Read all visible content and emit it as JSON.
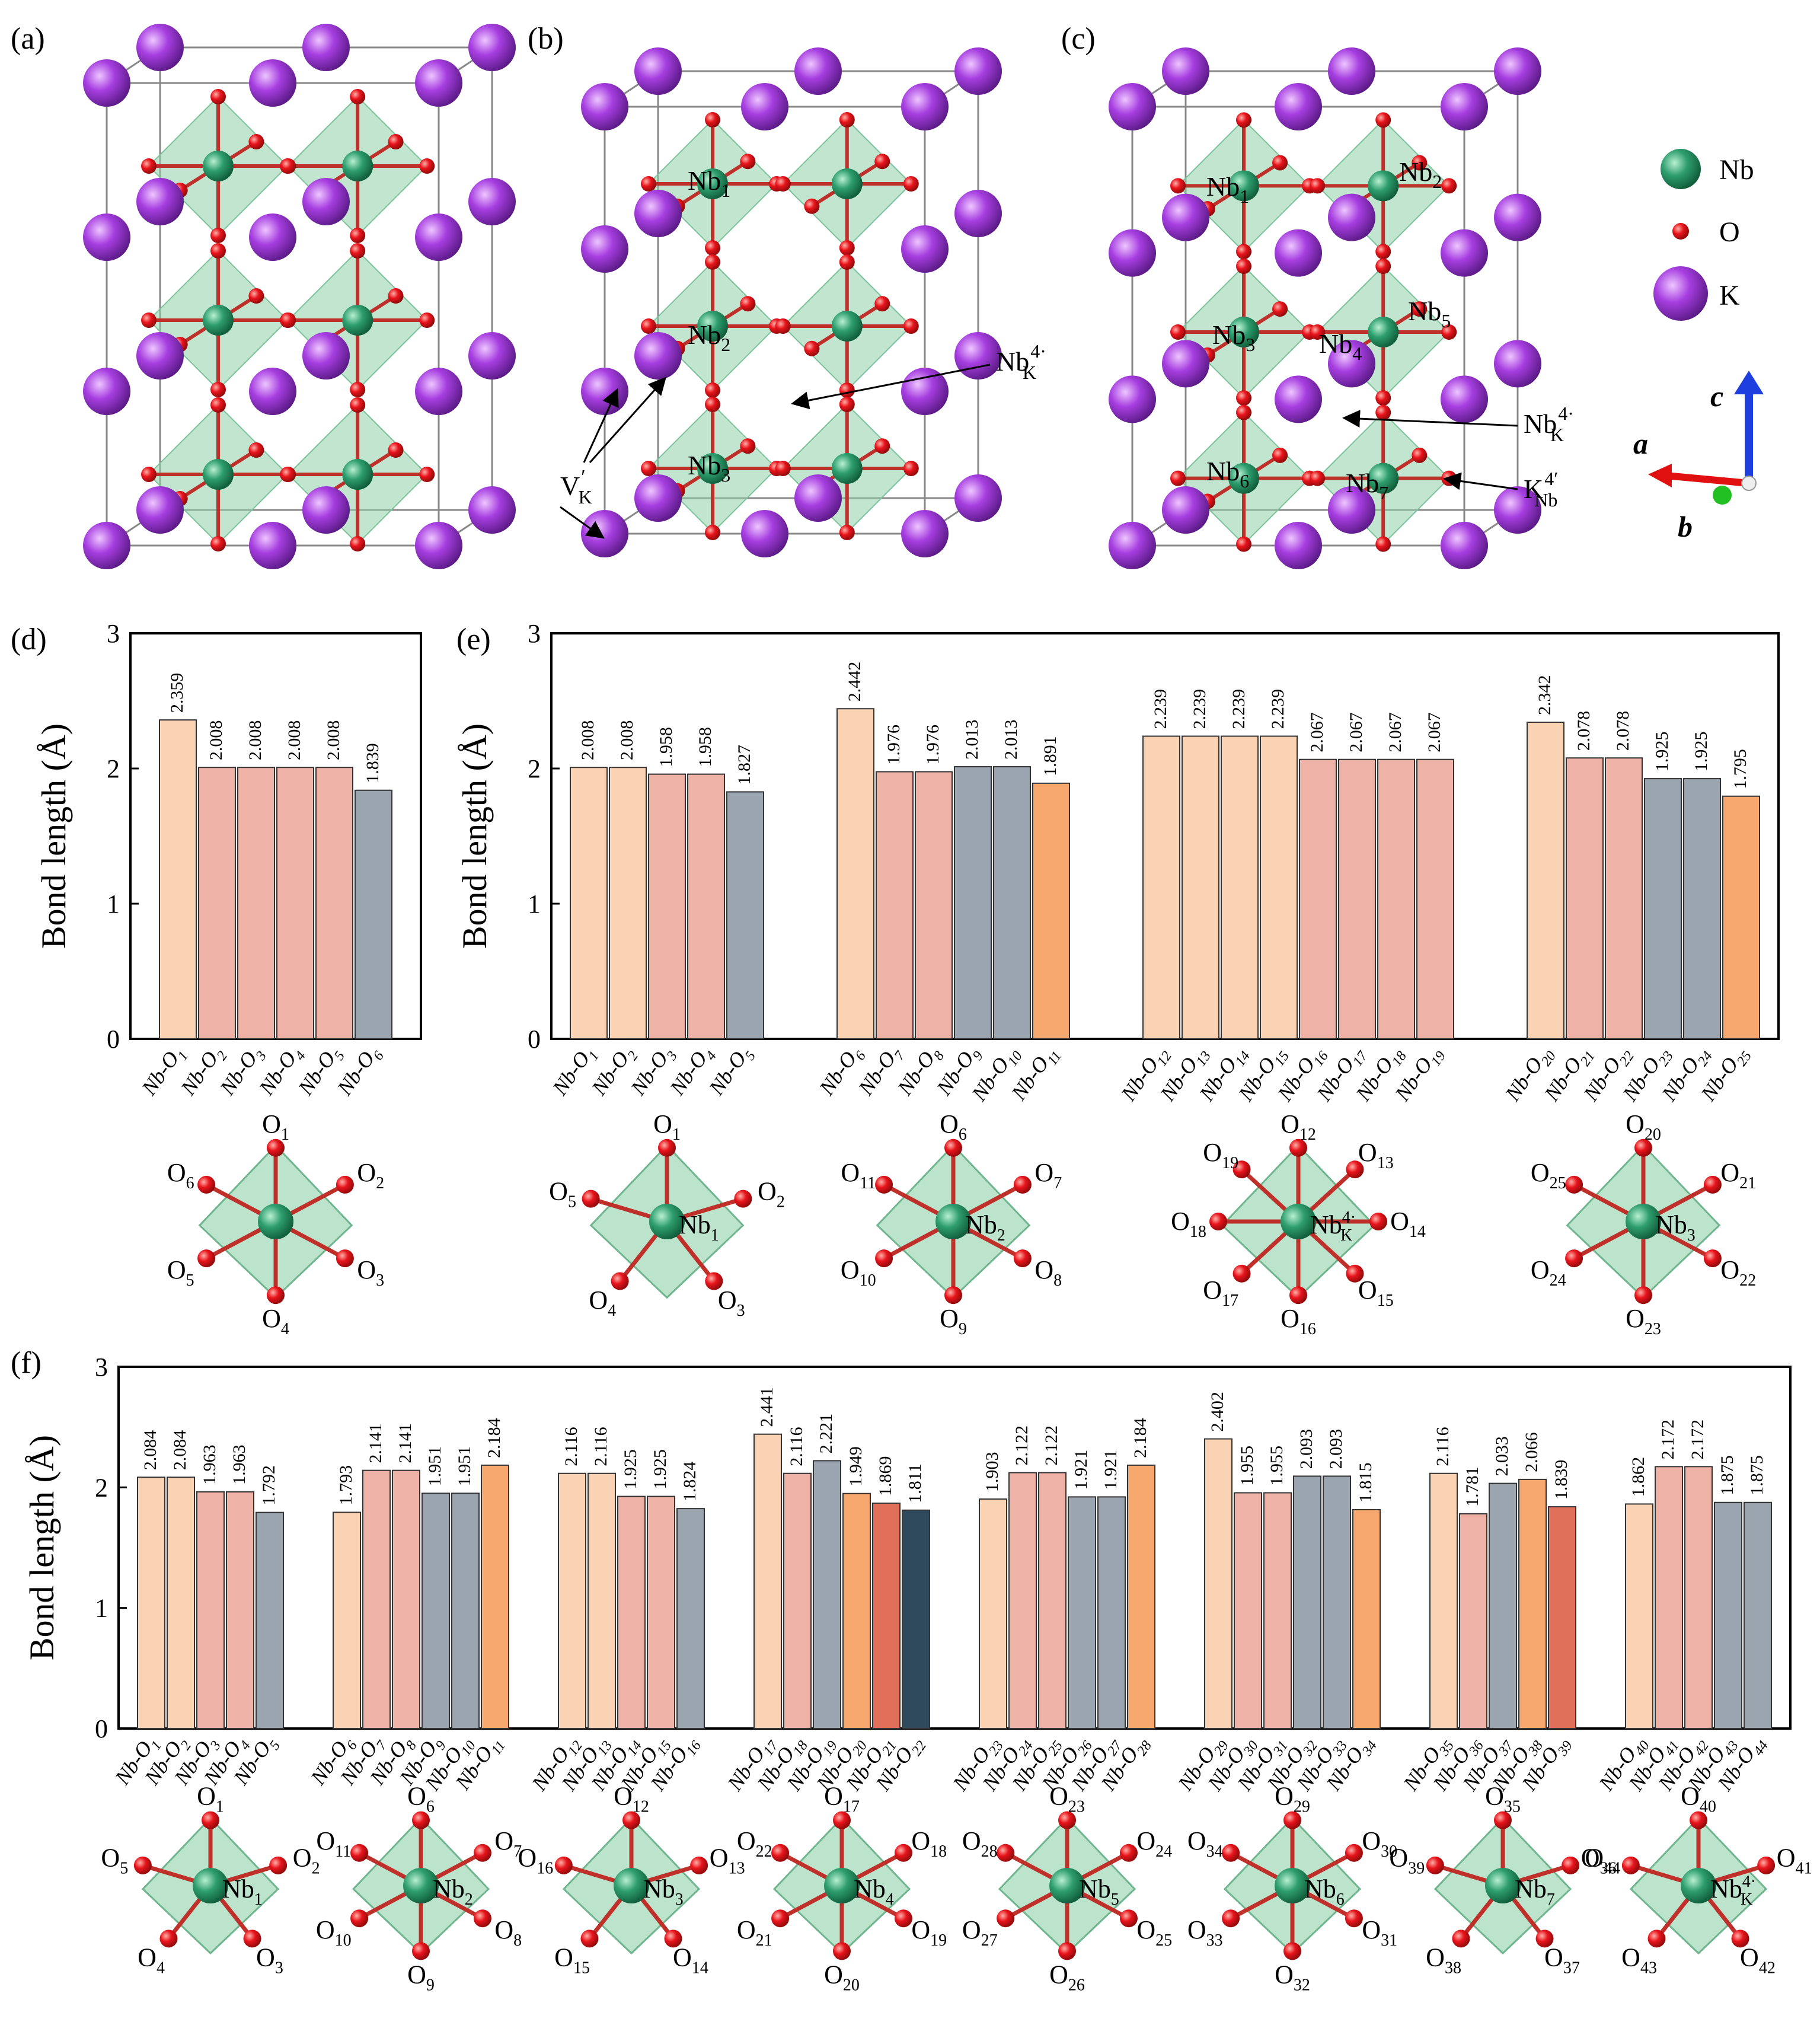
{
  "panels": {
    "a": "(a)",
    "b": "(b)",
    "c": "(c)",
    "d": "(d)",
    "e": "(e)",
    "f": "(f)"
  },
  "legend": {
    "items": [
      {
        "label": "Nb",
        "color": "#2e9e6e"
      },
      {
        "label": "O",
        "color": "#e8141c"
      },
      {
        "label": "K",
        "color": "#a63ee0"
      }
    ],
    "axes": [
      "a",
      "b",
      "c"
    ]
  },
  "colors": {
    "peach": "#f9d3b4",
    "pink": "#efb2a6",
    "gray": "#9aa5af",
    "orange": "#f6a86e",
    "red": "#e0705a",
    "navy": "#2f4a5c",
    "nb": "#2e9e6e",
    "o": "#e8141c",
    "k": "#a63ee0",
    "polyhedron": "#8fd0a8",
    "cellline": "#888888"
  },
  "structure_labels": {
    "b": {
      "sites": [
        {
          "base": "Nb",
          "sub": "1"
        },
        {
          "base": "Nb",
          "sub": "2"
        },
        {
          "base": "Nb",
          "sub": "3"
        }
      ],
      "defect": {
        "base": "Nb",
        "sub": "K",
        "sup": "4·"
      },
      "vacancy": {
        "base": "V",
        "sub": "K",
        "sup": "′"
      }
    },
    "c": {
      "sites": [
        {
          "base": "Nb",
          "sub": "1"
        },
        {
          "base": "Nb",
          "sub": "2"
        },
        {
          "base": "Nb",
          "sub": "3"
        },
        {
          "base": "Nb",
          "sub": "4"
        },
        {
          "base": "Nb",
          "sub": "5"
        },
        {
          "base": "Nb",
          "sub": "6"
        },
        {
          "base": "Nb",
          "sub": "7"
        }
      ],
      "defect1": {
        "base": "Nb",
        "sub": "K",
        "sup": "4·"
      },
      "defect2": {
        "base": "K",
        "sub": "Nb",
        "sup": "4′"
      }
    }
  },
  "chart_data": [
    {
      "panel": "(d)",
      "type": "bar",
      "ylabel": "Bond length (Å)",
      "ylim": [
        0,
        3
      ],
      "yticks": [
        0,
        1,
        2,
        3
      ],
      "groups": [
        {
          "labels": [
            "Nb-O1",
            "Nb-O2",
            "Nb-O3",
            "Nb-O4",
            "Nb-O5",
            "Nb-O6"
          ],
          "values": [
            2.359,
            2.008,
            2.008,
            2.008,
            2.008,
            1.839
          ],
          "colors": [
            "peach",
            "pink",
            "pink",
            "pink",
            "pink",
            "gray"
          ]
        }
      ],
      "octahedra": [
        {
          "center": {
            "base": "",
            "sub": "",
            "sup": ""
          },
          "oxygens": [
            "O1",
            "O2",
            "O3",
            "O4",
            "O5",
            "O6"
          ]
        }
      ]
    },
    {
      "panel": "(e)",
      "type": "bar",
      "ylabel": "Bond length (Å)",
      "ylim": [
        0,
        3
      ],
      "yticks": [
        0,
        1,
        2,
        3
      ],
      "groups": [
        {
          "labels": [
            "Nb-O1",
            "Nb-O2",
            "Nb-O3",
            "Nb-O4",
            "Nb-O5"
          ],
          "values": [
            2.008,
            2.008,
            1.958,
            1.958,
            1.827
          ],
          "colors": [
            "peach",
            "peach",
            "pink",
            "pink",
            "gray"
          ]
        },
        {
          "labels": [
            "Nb-O6",
            "Nb-O7",
            "Nb-O8",
            "Nb-O9",
            "Nb-O10",
            "Nb-O11"
          ],
          "values": [
            2.442,
            1.976,
            1.976,
            2.013,
            2.013,
            1.891
          ],
          "colors": [
            "peach",
            "pink",
            "pink",
            "gray",
            "gray",
            "orange"
          ]
        },
        {
          "labels": [
            "Nb-O12",
            "Nb-O13",
            "Nb-O14",
            "Nb-O15",
            "Nb-O16",
            "Nb-O17",
            "Nb-O18",
            "Nb-O19"
          ],
          "values": [
            2.239,
            2.239,
            2.239,
            2.239,
            2.067,
            2.067,
            2.067,
            2.067
          ],
          "colors": [
            "peach",
            "peach",
            "peach",
            "peach",
            "pink",
            "pink",
            "pink",
            "pink"
          ]
        },
        {
          "labels": [
            "Nb-O20",
            "Nb-O21",
            "Nb-O22",
            "Nb-O23",
            "Nb-O24",
            "Nb-O25"
          ],
          "values": [
            2.342,
            2.078,
            2.078,
            1.925,
            1.925,
            1.795
          ],
          "colors": [
            "peach",
            "pink",
            "pink",
            "gray",
            "gray",
            "orange"
          ]
        }
      ],
      "octahedra": [
        {
          "center": {
            "base": "Nb",
            "sub": "1",
            "sup": ""
          },
          "oxygens": [
            "O1",
            "O2",
            "O3",
            "O4",
            "O5"
          ]
        },
        {
          "center": {
            "base": "Nb",
            "sub": "2",
            "sup": ""
          },
          "oxygens": [
            "O6",
            "O7",
            "O8",
            "O9",
            "O10",
            "O11"
          ]
        },
        {
          "center": {
            "base": "Nb",
            "sub": "K",
            "sup": "4·"
          },
          "oxygens": [
            "O12",
            "O13",
            "O14",
            "O15",
            "O16",
            "O17",
            "O18",
            "O19"
          ]
        },
        {
          "center": {
            "base": "Nb",
            "sub": "3",
            "sup": ""
          },
          "oxygens": [
            "O20",
            "O21",
            "O22",
            "O23",
            "O24",
            "O25"
          ]
        }
      ]
    },
    {
      "panel": "(f)",
      "type": "bar",
      "ylabel": "Bond length (Å)",
      "ylim": [
        0,
        3
      ],
      "yticks": [
        0,
        1,
        2,
        3
      ],
      "groups": [
        {
          "labels": [
            "Nb-O1",
            "Nb-O2",
            "Nb-O3",
            "Nb-O4",
            "Nb-O5"
          ],
          "values": [
            2.084,
            2.084,
            1.963,
            1.963,
            1.792
          ],
          "colors": [
            "peach",
            "peach",
            "pink",
            "pink",
            "gray"
          ]
        },
        {
          "labels": [
            "Nb-O6",
            "Nb-O7",
            "Nb-O8",
            "Nb-O9",
            "Nb-O10",
            "Nb-O11"
          ],
          "values": [
            1.793,
            2.141,
            2.141,
            1.951,
            1.951,
            2.184
          ],
          "colors": [
            "peach",
            "pink",
            "pink",
            "gray",
            "gray",
            "orange"
          ]
        },
        {
          "labels": [
            "Nb-O12",
            "Nb-O13",
            "Nb-O14",
            "Nb-O15",
            "Nb-O16"
          ],
          "values": [
            2.116,
            2.116,
            1.925,
            1.925,
            1.824
          ],
          "colors": [
            "peach",
            "peach",
            "pink",
            "pink",
            "gray"
          ]
        },
        {
          "labels": [
            "Nb-O17",
            "Nb-O18",
            "Nb-O19",
            "Nb-O20",
            "Nb-O21",
            "Nb-O22"
          ],
          "values": [
            2.441,
            2.116,
            2.221,
            1.949,
            1.869,
            1.811
          ],
          "colors": [
            "peach",
            "pink",
            "gray",
            "orange",
            "red",
            "navy"
          ]
        },
        {
          "labels": [
            "Nb-O23",
            "Nb-O24",
            "Nb-O25",
            "Nb-O26",
            "Nb-O27",
            "Nb-O28"
          ],
          "values": [
            1.903,
            2.122,
            2.122,
            1.921,
            1.921,
            2.184
          ],
          "colors": [
            "peach",
            "pink",
            "pink",
            "gray",
            "gray",
            "orange"
          ]
        },
        {
          "labels": [
            "Nb-O29",
            "Nb-O30",
            "Nb-O31",
            "Nb-O32",
            "Nb-O33",
            "Nb-O34"
          ],
          "values": [
            2.402,
            1.955,
            1.955,
            2.093,
            2.093,
            1.815
          ],
          "colors": [
            "peach",
            "pink",
            "pink",
            "gray",
            "gray",
            "orange"
          ]
        },
        {
          "labels": [
            "Nb-O35",
            "Nb-O36",
            "Nb-O37",
            "Nb-O38",
            "Nb-O39"
          ],
          "values": [
            2.116,
            1.781,
            2.033,
            2.066,
            1.839
          ],
          "colors": [
            "peach",
            "pink",
            "gray",
            "orange",
            "red"
          ]
        },
        {
          "labels": [
            "Nb-O40",
            "Nb-O41",
            "Nb-O42",
            "Nb-O43",
            "Nb-O44"
          ],
          "values": [
            1.862,
            2.172,
            2.172,
            1.875,
            1.875
          ],
          "colors": [
            "peach",
            "pink",
            "pink",
            "gray",
            "gray"
          ]
        }
      ],
      "octahedra": [
        {
          "center": {
            "base": "Nb",
            "sub": "1",
            "sup": ""
          },
          "oxygens": [
            "O1",
            "O2",
            "O3",
            "O4",
            "O5"
          ]
        },
        {
          "center": {
            "base": "Nb",
            "sub": "2",
            "sup": ""
          },
          "oxygens": [
            "O6",
            "O7",
            "O8",
            "O9",
            "O10",
            "O11"
          ]
        },
        {
          "center": {
            "base": "Nb",
            "sub": "3",
            "sup": ""
          },
          "oxygens": [
            "O12",
            "O13",
            "O14",
            "O15",
            "O16"
          ]
        },
        {
          "center": {
            "base": "Nb",
            "sub": "4",
            "sup": ""
          },
          "oxygens": [
            "O17",
            "O18",
            "O19",
            "O20",
            "O21",
            "O22"
          ]
        },
        {
          "center": {
            "base": "Nb",
            "sub": "5",
            "sup": ""
          },
          "oxygens": [
            "O23",
            "O24",
            "O25",
            "O26",
            "O27",
            "O28"
          ]
        },
        {
          "center": {
            "base": "Nb",
            "sub": "6",
            "sup": ""
          },
          "oxygens": [
            "O29",
            "O30",
            "O31",
            "O32",
            "O33",
            "O34"
          ]
        },
        {
          "center": {
            "base": "Nb",
            "sub": "7",
            "sup": ""
          },
          "oxygens": [
            "O35",
            "O36",
            "O37",
            "O38",
            "O39"
          ]
        },
        {
          "center": {
            "base": "Nb",
            "sub": "K",
            "sup": "4·"
          },
          "oxygens": [
            "O40",
            "O41",
            "O42",
            "O43",
            "O44"
          ]
        }
      ]
    }
  ]
}
